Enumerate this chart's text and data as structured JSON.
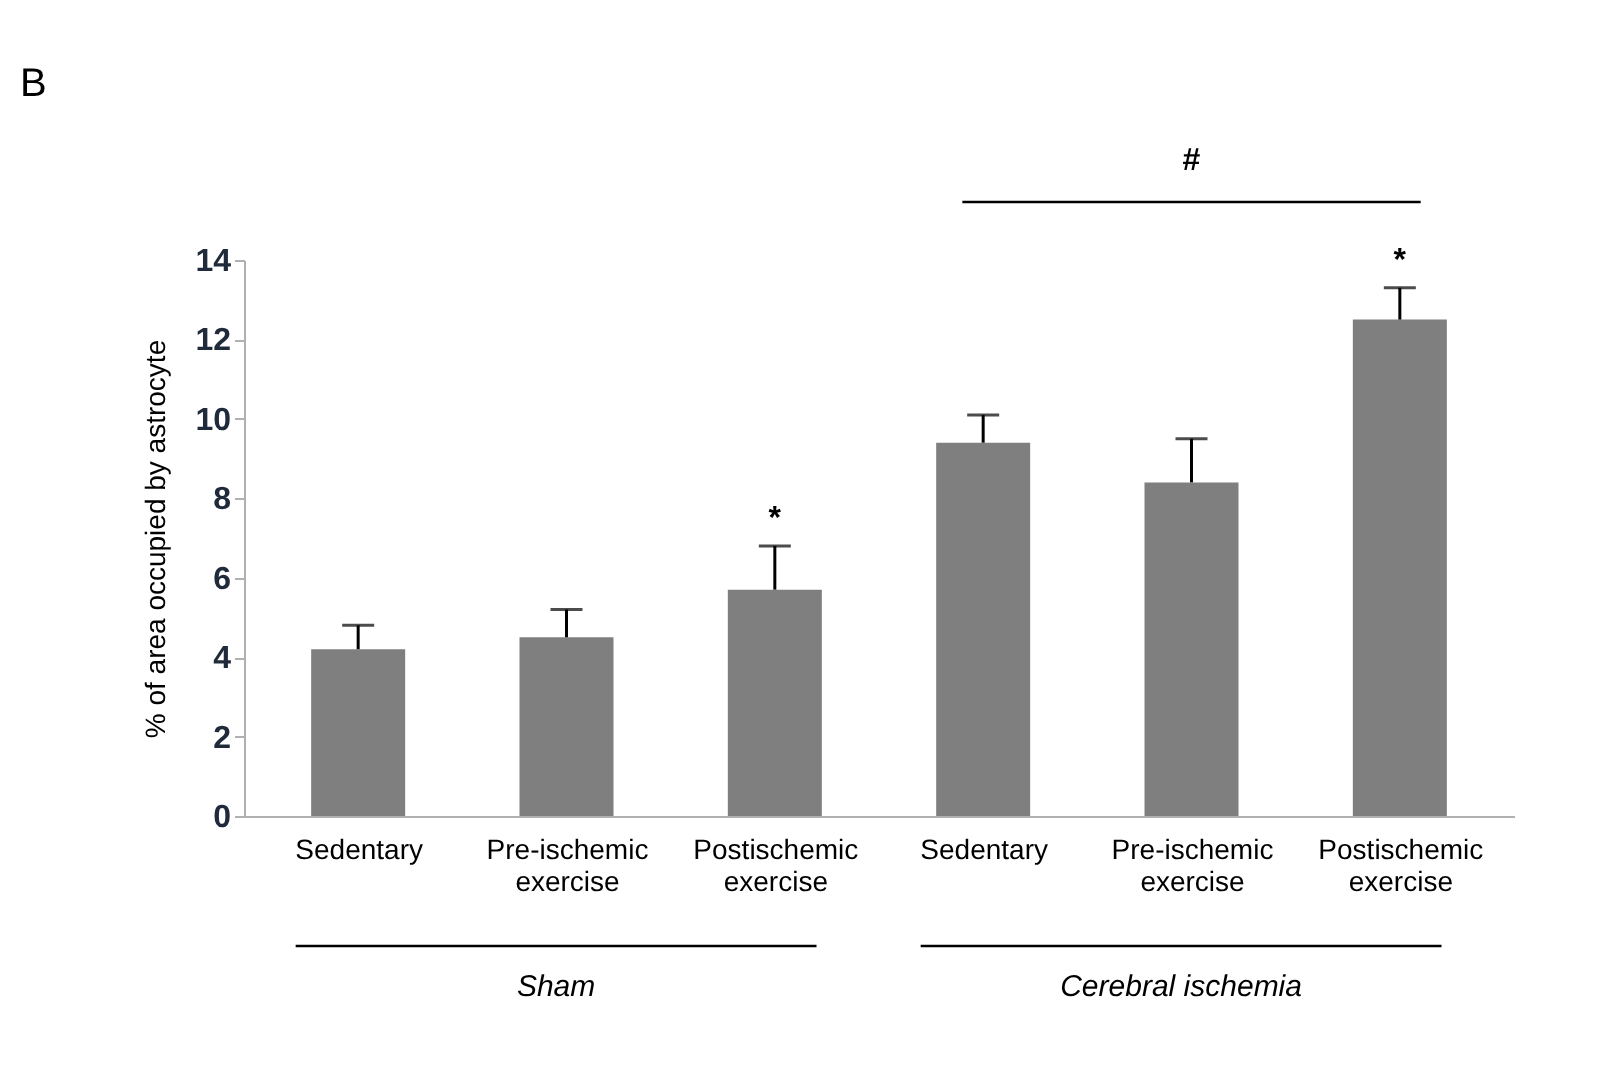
{
  "chart_data": {
    "type": "bar",
    "ylabel": "% of area occupied by astrocyte",
    "categories": [
      "Sedentary",
      "Pre-ischemic exercise",
      "Postischemic exercise",
      "Sedentary",
      "Pre-ischemic exercise",
      "Postischemic exercise"
    ],
    "values": [
      4.2,
      4.5,
      5.7,
      9.4,
      8.4,
      12.5
    ],
    "errors": [
      [
        4.2,
        4.8
      ],
      [
        4.5,
        5.2
      ],
      [
        5.7,
        6.8
      ],
      [
        9.4,
        10.1
      ],
      [
        8.4,
        9.5
      ],
      [
        12.5,
        13.3
      ]
    ],
    "value_labels": [
      null,
      null,
      "*",
      null,
      null,
      "*"
    ],
    "color": "#7f7f7f",
    "ylim": [
      0,
      14
    ],
    "yticks": [
      0,
      2,
      4,
      6,
      8,
      10,
      12,
      14
    ],
    "grid": false,
    "annotations": [
      "B",
      "#",
      "Sham",
      "Cerebral ischemia"
    ]
  }
}
